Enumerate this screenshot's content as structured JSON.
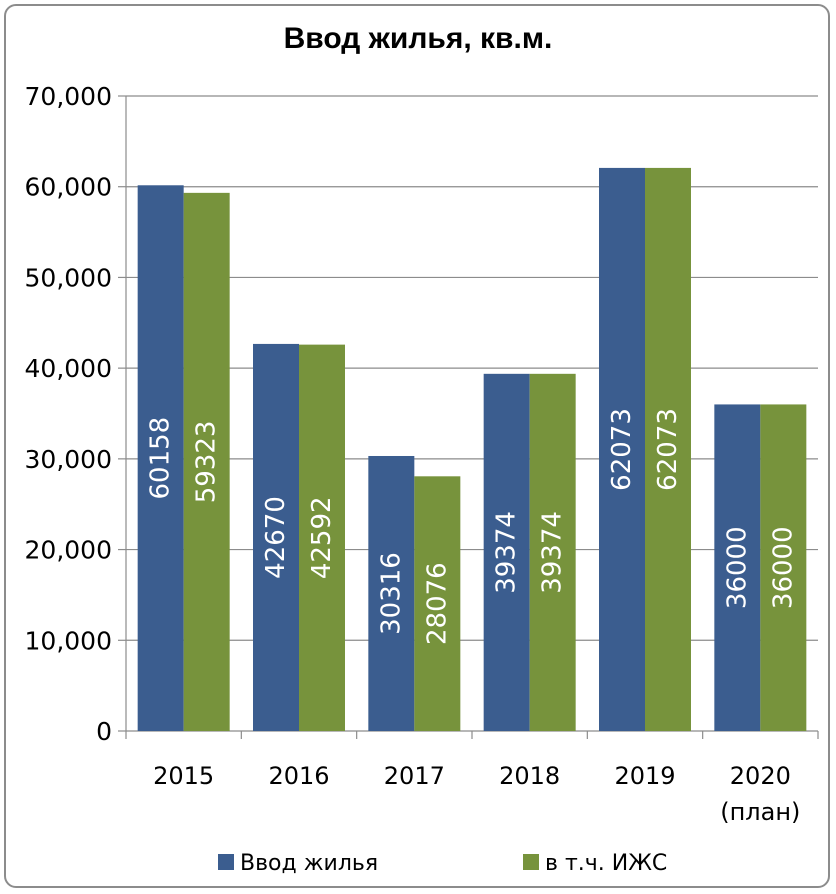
{
  "chart_data": {
    "type": "bar",
    "title": "Ввод жилья, кв.м.",
    "xlabel": "",
    "ylabel": "",
    "categories": [
      [
        "2015"
      ],
      [
        "2016"
      ],
      [
        "2017"
      ],
      [
        "2018"
      ],
      [
        "2019"
      ],
      [
        "2020",
        "(план)"
      ]
    ],
    "series": [
      {
        "name": "Ввод жилья",
        "color": "#3b5d8f",
        "values": [
          60158,
          42670,
          30316,
          39374,
          62073,
          36000
        ]
      },
      {
        "name": "в т.ч. ИЖС",
        "color": "#77933c",
        "values": [
          59323,
          42592,
          28076,
          39374,
          62073,
          36000
        ]
      }
    ],
    "ylim": [
      0,
      70000
    ],
    "yticks": [
      0,
      10000,
      20000,
      30000,
      40000,
      50000,
      60000,
      70000
    ],
    "ytick_labels": [
      "0",
      "10,000",
      "20,000",
      "30,000",
      "40,000",
      "50,000",
      "60,000",
      "70,000"
    ],
    "grid": true,
    "legend": "bottom",
    "data_labels": "inside-bar-rotated"
  }
}
